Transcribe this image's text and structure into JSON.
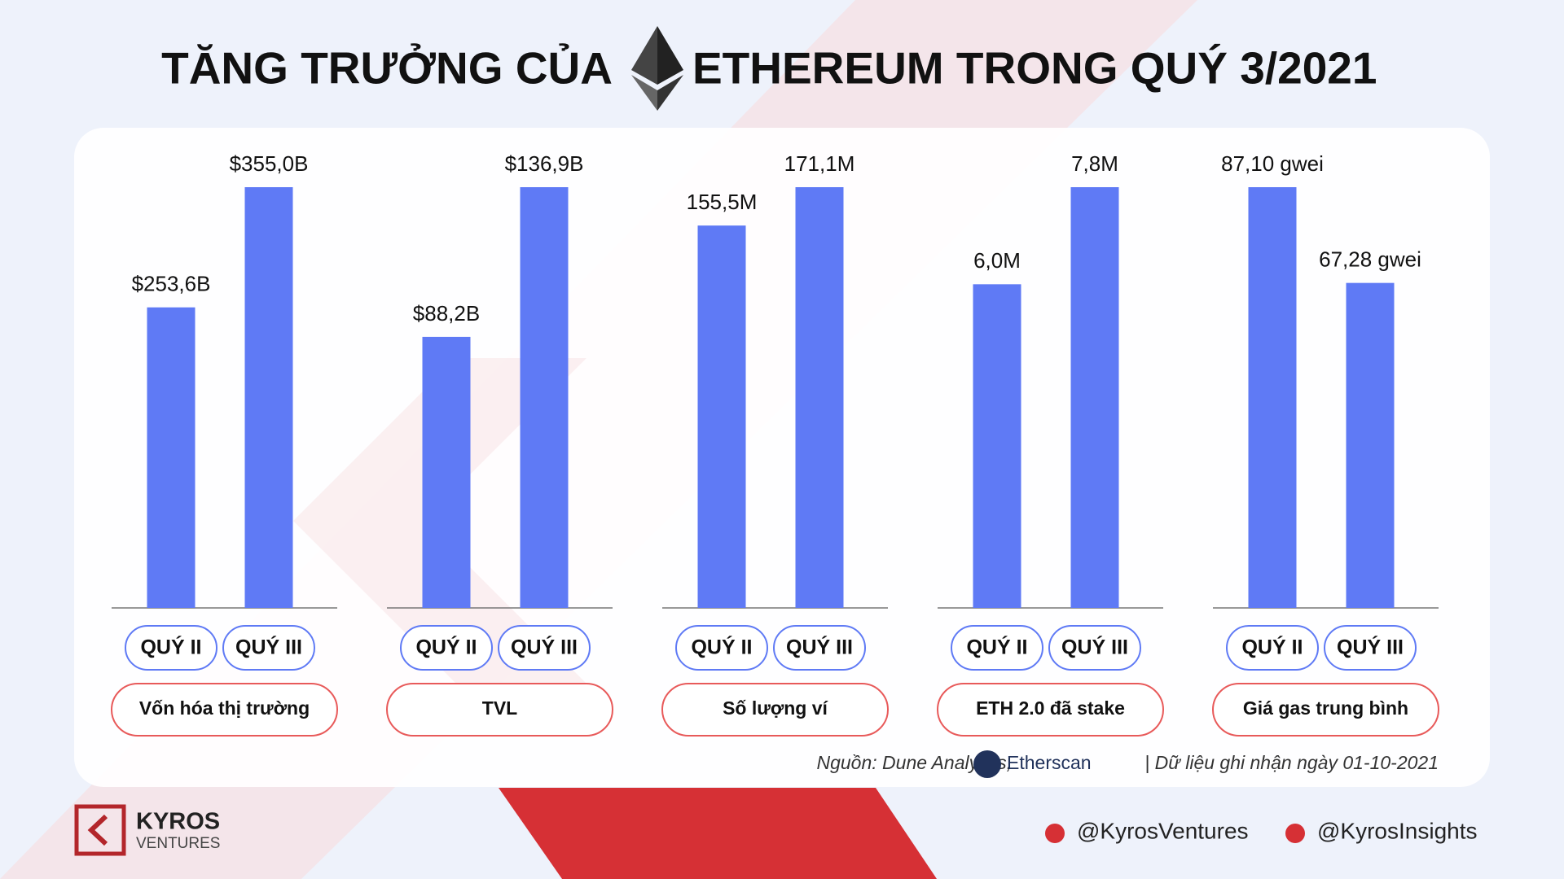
{
  "header": {
    "title_left": "TĂNG TRƯỞNG CỦA",
    "title_right": "ETHEREUM TRONG QUÝ 3/2021"
  },
  "chart_data": [
    {
      "type": "bar",
      "title": "Vốn hóa thị trường",
      "categories": [
        "QUÝ II",
        "QUÝ III"
      ],
      "values": [
        253.6,
        355.0
      ],
      "value_labels": [
        "$253,6B",
        "$355,0B"
      ],
      "color": "#5f7af5"
    },
    {
      "type": "bar",
      "title": "TVL",
      "categories": [
        "QUÝ II",
        "QUÝ III"
      ],
      "values": [
        88.2,
        136.9
      ],
      "value_labels": [
        "$88,2B",
        "$136,9B"
      ],
      "color": "#5f7af5"
    },
    {
      "type": "bar",
      "title": "Số lượng ví",
      "categories": [
        "QUÝ II",
        "QUÝ III"
      ],
      "values": [
        155.5,
        171.1
      ],
      "value_labels": [
        "155,5M",
        "171,1M"
      ],
      "color": "#5f7af5"
    },
    {
      "type": "bar",
      "title": "ETH 2.0 đã stake",
      "categories": [
        "QUÝ II",
        "QUÝ III"
      ],
      "values": [
        6.0,
        7.8
      ],
      "value_labels": [
        "6,0M",
        "7,8M"
      ],
      "color": "#5f7af5"
    },
    {
      "type": "bar",
      "title": "Giá gas trung bình",
      "categories": [
        "QUÝ II",
        "QUÝ III"
      ],
      "values": [
        87.1,
        67.28
      ],
      "value_labels": [
        "87,10 gwei",
        "67,28 gwei"
      ],
      "color": "#5f7af5"
    }
  ],
  "source": {
    "prefix": "Nguồn: Dune Analytics,",
    "brand": "Etherscan",
    "suffix": "| Dữ liệu ghi nhận ngày 01-10-2021"
  },
  "footer": {
    "logo_name": "KYROS",
    "logo_sub": "VENTURES",
    "twitter": "@KyrosVentures",
    "telegram": "@KyrosInsights"
  }
}
